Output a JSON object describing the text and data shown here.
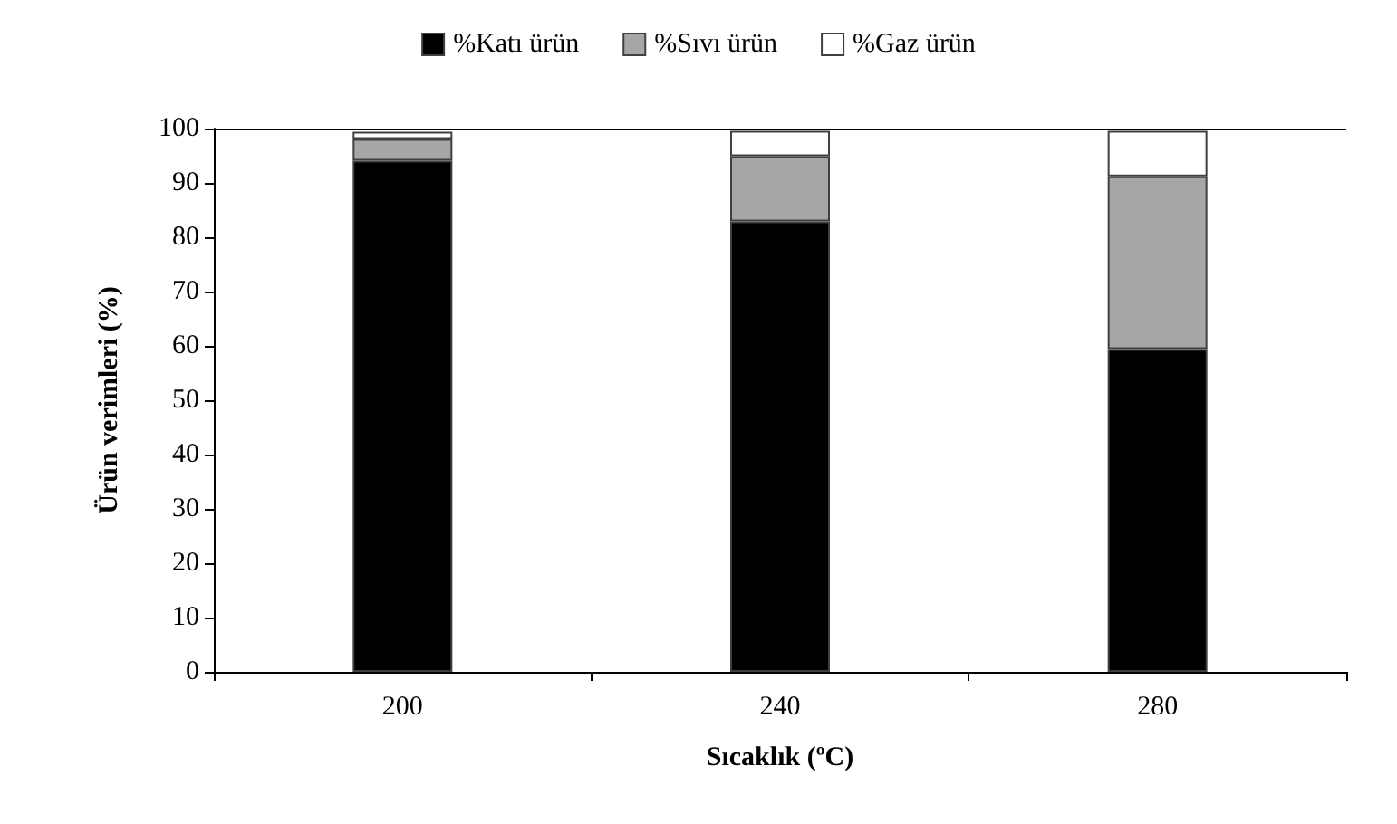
{
  "chart_data": {
    "type": "bar",
    "stacked": true,
    "xlabel": "Sıcaklık (ºC)",
    "ylabel": "Ürün verimleri (%)",
    "categories": [
      "200",
      "240",
      "280"
    ],
    "series": [
      {
        "name": "%Katı ürün",
        "color": "#000000",
        "values": [
          94.1,
          82.9,
          59.4
        ]
      },
      {
        "name": "%Sıvı ürün",
        "color": "#a6a6a6",
        "values": [
          4.0,
          12.0,
          31.8
        ]
      },
      {
        "name": "%Gaz ürün",
        "color": "#ffffff",
        "values": [
          1.3,
          4.7,
          8.4
        ]
      }
    ],
    "ylim": [
      0,
      100
    ],
    "yticks": [
      0,
      10,
      20,
      30,
      40,
      50,
      60,
      70,
      80,
      90,
      100
    ],
    "grid": false,
    "legend": "top"
  }
}
